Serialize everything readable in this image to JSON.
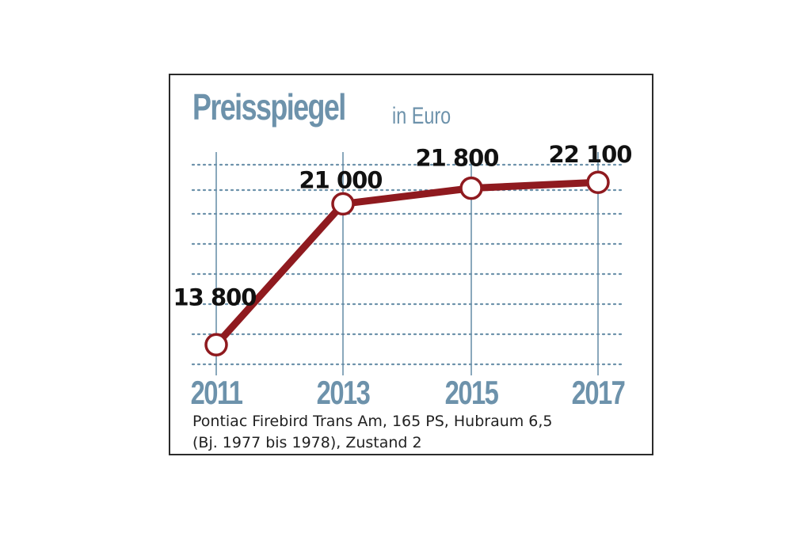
{
  "colors": {
    "accent": "#6d92ab",
    "line": "#8f1a1f",
    "text": "#111111",
    "frame": "#2b2b2b"
  },
  "title": "Preisspiegel",
  "title_unit": "in Euro",
  "caption": {
    "line1": "Pontiac Firebird Trans Am, 165 PS, Hubraum 6,5",
    "line2": "(Bj. 1977 bis 1978), Zustand 2"
  },
  "chart_data": {
    "type": "line",
    "title": "Preisspiegel",
    "subtitle": "in Euro",
    "categories": [
      "2011",
      "2013",
      "2015",
      "2017"
    ],
    "series": [
      {
        "values": [
          13800,
          21000,
          21800,
          22100
        ]
      }
    ],
    "data_labels": [
      "13 800",
      "21 000",
      "21 800",
      "22 100"
    ],
    "xlabel": "",
    "ylabel": "",
    "ylim": [
      12800,
      23000
    ],
    "grid": "dotted horizontal lines, solid vertical lines at each year",
    "legend": "none"
  }
}
